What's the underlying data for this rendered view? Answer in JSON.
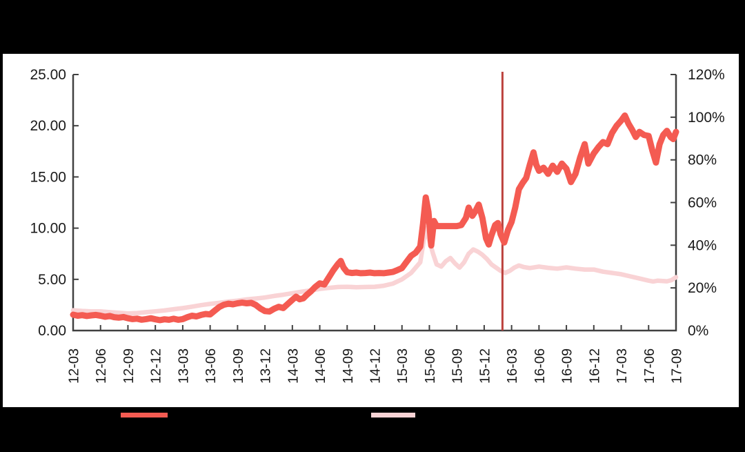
{
  "page": {
    "background_color": "#ffffff",
    "mask_bar_color": "#000000"
  },
  "chart_data": {
    "type": "line",
    "title": "",
    "grid": false,
    "legend_position": "bottom",
    "x_tick_labels": [
      "12-03",
      "12-06",
      "12-09",
      "12-12",
      "13-03",
      "13-06",
      "13-09",
      "13-12",
      "14-03",
      "14-06",
      "14-09",
      "14-12",
      "15-03",
      "15-06",
      "15-09",
      "15-12",
      "16-03",
      "16-06",
      "16-09",
      "16-12",
      "17-03",
      "17-06",
      "17-09"
    ],
    "x_months_per_tick": 3,
    "left_axis": {
      "min": 0,
      "max": 25,
      "tick_labels": [
        "0.00",
        "5.00",
        "10.00",
        "15.00",
        "20.00",
        "25.00"
      ]
    },
    "right_axis": {
      "min": 0,
      "max": 120,
      "tick_labels": [
        "0%",
        "20%",
        "40%",
        "60%",
        "80%",
        "100%",
        "120%"
      ]
    },
    "vline": {
      "x_month": 47,
      "color": "#bc423e"
    },
    "series": [
      {
        "id": "pale-pink-line",
        "label": "",
        "axis": "right",
        "color": "#f9d3d5",
        "stroke_width": 6.5,
        "points": [
          [
            0,
            9.5
          ],
          [
            1,
            9.2
          ],
          [
            2,
            9.0
          ],
          [
            3,
            9.0
          ],
          [
            4,
            8.6
          ],
          [
            5,
            8.3
          ],
          [
            6,
            8.0
          ],
          [
            7,
            8.2
          ],
          [
            8,
            8.6
          ],
          [
            9,
            9.0
          ],
          [
            10,
            9.4
          ],
          [
            11,
            10.0
          ],
          [
            12,
            10.5
          ],
          [
            13,
            11.2
          ],
          [
            14,
            11.9
          ],
          [
            15,
            12.5
          ],
          [
            16,
            13.0
          ],
          [
            17,
            13.6
          ],
          [
            18,
            14.0
          ],
          [
            19,
            14.6
          ],
          [
            20,
            15.0
          ],
          [
            21,
            15.5
          ],
          [
            22,
            16.2
          ],
          [
            23,
            16.8
          ],
          [
            24,
            17.5
          ],
          [
            25,
            18.2
          ],
          [
            26,
            18.8
          ],
          [
            27,
            19.5
          ],
          [
            28,
            20.0
          ],
          [
            29,
            20.4
          ],
          [
            30,
            20.5
          ],
          [
            31,
            20.3
          ],
          [
            32,
            20.4
          ],
          [
            33,
            20.5
          ],
          [
            34,
            21.0
          ],
          [
            35,
            22.0
          ],
          [
            36,
            24.0
          ],
          [
            37,
            27.0
          ],
          [
            38,
            32.0
          ],
          [
            38.6,
            48.0
          ],
          [
            39,
            42.0
          ],
          [
            39.4,
            36.0
          ],
          [
            39.8,
            31.0
          ],
          [
            40.3,
            30.0
          ],
          [
            40.8,
            32.5
          ],
          [
            41.3,
            34.0
          ],
          [
            41.8,
            31.5
          ],
          [
            42.3,
            29.5
          ],
          [
            42.8,
            32.0
          ],
          [
            43.3,
            36.0
          ],
          [
            43.8,
            38.0
          ],
          [
            44.3,
            37.0
          ],
          [
            44.8,
            35.5
          ],
          [
            45.3,
            33.5
          ],
          [
            45.8,
            31.0
          ],
          [
            46.3,
            29.5
          ],
          [
            46.8,
            28.0
          ],
          [
            47.3,
            27.0
          ],
          [
            47.8,
            28.0
          ],
          [
            48.3,
            29.5
          ],
          [
            48.8,
            30.5
          ],
          [
            49.3,
            29.8
          ],
          [
            50,
            29.3
          ],
          [
            51,
            30.0
          ],
          [
            52,
            29.4
          ],
          [
            53,
            29.0
          ],
          [
            54,
            29.6
          ],
          [
            55,
            29.0
          ],
          [
            56,
            28.6
          ],
          [
            57,
            28.6
          ],
          [
            58,
            27.6
          ],
          [
            59,
            27.0
          ],
          [
            60,
            26.4
          ],
          [
            61,
            25.4
          ],
          [
            62,
            24.4
          ],
          [
            63,
            23.4
          ],
          [
            63.5,
            23.0
          ],
          [
            64,
            23.4
          ],
          [
            65,
            23.1
          ],
          [
            65.5,
            23.6
          ],
          [
            66,
            25.0
          ]
        ]
      },
      {
        "id": "thick-red-line",
        "label": "",
        "axis": "left",
        "color": "#f45b52",
        "stroke_width": 9,
        "points": [
          [
            0,
            1.55
          ],
          [
            0.5,
            1.45
          ],
          [
            1,
            1.5
          ],
          [
            1.5,
            1.42
          ],
          [
            2,
            1.48
          ],
          [
            2.5,
            1.52
          ],
          [
            3,
            1.45
          ],
          [
            3.5,
            1.35
          ],
          [
            4,
            1.42
          ],
          [
            4.5,
            1.3
          ],
          [
            5,
            1.26
          ],
          [
            5.5,
            1.32
          ],
          [
            6,
            1.2
          ],
          [
            6.5,
            1.12
          ],
          [
            7,
            1.16
          ],
          [
            7.5,
            1.06
          ],
          [
            8,
            1.12
          ],
          [
            8.5,
            1.2
          ],
          [
            9,
            1.1
          ],
          [
            9.5,
            1.02
          ],
          [
            10,
            1.1
          ],
          [
            10.5,
            1.05
          ],
          [
            11,
            1.15
          ],
          [
            11.5,
            1.05
          ],
          [
            12,
            1.12
          ],
          [
            12.5,
            1.3
          ],
          [
            13,
            1.45
          ],
          [
            13.5,
            1.38
          ],
          [
            14,
            1.52
          ],
          [
            14.5,
            1.62
          ],
          [
            15,
            1.58
          ],
          [
            15.5,
            1.95
          ],
          [
            16,
            2.3
          ],
          [
            16.5,
            2.52
          ],
          [
            17,
            2.62
          ],
          [
            17.5,
            2.56
          ],
          [
            18,
            2.66
          ],
          [
            18.5,
            2.72
          ],
          [
            19,
            2.66
          ],
          [
            19.5,
            2.7
          ],
          [
            20,
            2.5
          ],
          [
            20.5,
            2.15
          ],
          [
            21,
            1.9
          ],
          [
            21.5,
            1.86
          ],
          [
            22,
            2.12
          ],
          [
            22.5,
            2.32
          ],
          [
            23,
            2.2
          ],
          [
            23.5,
            2.6
          ],
          [
            24,
            3.0
          ],
          [
            24.4,
            3.3
          ],
          [
            24.8,
            3.05
          ],
          [
            25.2,
            3.15
          ],
          [
            25.6,
            3.5
          ],
          [
            26,
            3.8
          ],
          [
            26.5,
            4.25
          ],
          [
            27,
            4.6
          ],
          [
            27.5,
            4.5
          ],
          [
            28,
            5.2
          ],
          [
            28.5,
            5.9
          ],
          [
            29,
            6.5
          ],
          [
            29.3,
            6.8
          ],
          [
            29.6,
            6.15
          ],
          [
            30,
            5.7
          ],
          [
            30.5,
            5.62
          ],
          [
            31,
            5.66
          ],
          [
            31.5,
            5.6
          ],
          [
            32,
            5.62
          ],
          [
            32.5,
            5.66
          ],
          [
            33,
            5.6
          ],
          [
            33.5,
            5.62
          ],
          [
            34,
            5.6
          ],
          [
            34.5,
            5.66
          ],
          [
            35,
            5.72
          ],
          [
            35.5,
            5.9
          ],
          [
            36,
            6.1
          ],
          [
            36.5,
            6.7
          ],
          [
            37,
            7.3
          ],
          [
            37.5,
            7.6
          ],
          [
            38,
            8.2
          ],
          [
            38.3,
            10.4
          ],
          [
            38.6,
            13.0
          ],
          [
            38.9,
            11.6
          ],
          [
            39.2,
            8.3
          ],
          [
            39.5,
            10.7
          ],
          [
            39.8,
            10.2
          ],
          [
            41,
            10.2
          ],
          [
            42,
            10.2
          ],
          [
            42.5,
            10.3
          ],
          [
            43,
            11.0
          ],
          [
            43.3,
            12.0
          ],
          [
            43.7,
            11.2
          ],
          [
            44,
            11.6
          ],
          [
            44.4,
            12.3
          ],
          [
            44.8,
            11.0
          ],
          [
            45.2,
            9.0
          ],
          [
            45.5,
            8.4
          ],
          [
            45.8,
            9.3
          ],
          [
            46.2,
            10.3
          ],
          [
            46.5,
            10.5
          ],
          [
            46.8,
            9.4
          ],
          [
            47.2,
            8.6
          ],
          [
            47.6,
            9.8
          ],
          [
            48,
            10.6
          ],
          [
            48.4,
            12.0
          ],
          [
            48.8,
            13.8
          ],
          [
            49.2,
            14.4
          ],
          [
            49.6,
            14.9
          ],
          [
            50,
            16.2
          ],
          [
            50.4,
            17.4
          ],
          [
            50.7,
            16.2
          ],
          [
            51,
            15.6
          ],
          [
            51.5,
            15.9
          ],
          [
            52,
            15.3
          ],
          [
            52.5,
            16.1
          ],
          [
            53,
            15.5
          ],
          [
            53.5,
            16.3
          ],
          [
            54,
            15.8
          ],
          [
            54.5,
            14.5
          ],
          [
            55,
            15.3
          ],
          [
            55.5,
            16.9
          ],
          [
            56,
            18.2
          ],
          [
            56.4,
            16.3
          ],
          [
            57,
            17.3
          ],
          [
            57.5,
            17.9
          ],
          [
            58,
            18.4
          ],
          [
            58.5,
            18.2
          ],
          [
            59,
            19.3
          ],
          [
            59.5,
            20.0
          ],
          [
            60,
            20.5
          ],
          [
            60.4,
            21.0
          ],
          [
            60.8,
            20.2
          ],
          [
            61.2,
            19.6
          ],
          [
            61.6,
            18.9
          ],
          [
            62,
            19.4
          ],
          [
            62.5,
            19.1
          ],
          [
            63,
            19.0
          ],
          [
            63.4,
            17.6
          ],
          [
            63.8,
            16.4
          ],
          [
            64.2,
            18.2
          ],
          [
            64.6,
            19.1
          ],
          [
            65,
            19.5
          ],
          [
            65.4,
            18.9
          ],
          [
            65.7,
            18.7
          ],
          [
            66,
            19.4
          ]
        ]
      }
    ],
    "legend": [
      {
        "swatch_color": "#f45b52",
        "label": ""
      },
      {
        "swatch_color": "#f9d3d5",
        "label": ""
      }
    ]
  }
}
